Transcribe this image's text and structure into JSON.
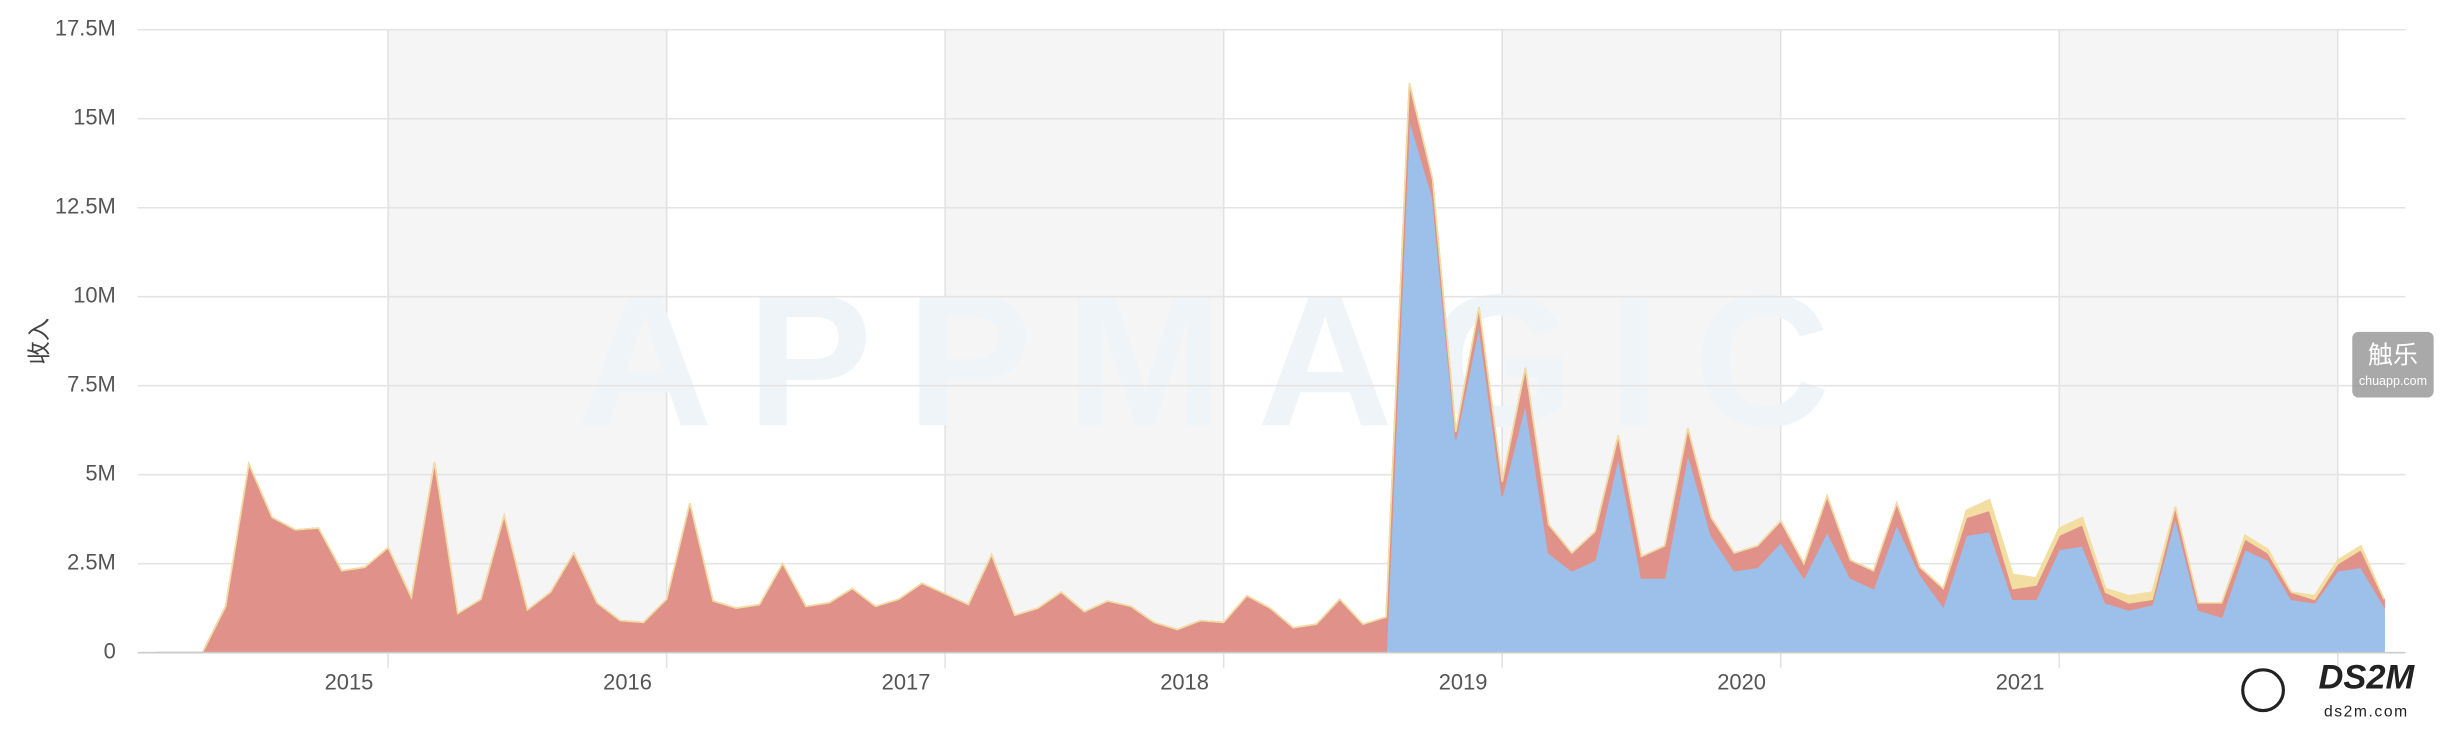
{
  "chart_data": {
    "type": "stacked_area",
    "ylabel": "收入",
    "watermark": "APPMAGIC",
    "watermark_badge": [
      "触乐",
      "chuapp.com"
    ],
    "watermark_logo": [
      "DS2M",
      "ds2m.com"
    ],
    "categories": [
      null,
      null,
      null,
      null,
      null,
      null,
      null,
      null,
      null,
      null,
      "2015",
      null,
      null,
      null,
      null,
      null,
      null,
      null,
      null,
      null,
      null,
      null,
      "2016",
      null,
      null,
      null,
      null,
      null,
      null,
      null,
      null,
      null,
      null,
      null,
      "2017",
      null,
      null,
      null,
      null,
      null,
      null,
      null,
      null,
      null,
      null,
      null,
      "2018",
      null,
      null,
      null,
      null,
      null,
      null,
      null,
      null,
      null,
      null,
      null,
      "2019",
      null,
      null,
      null,
      null,
      null,
      null,
      null,
      null,
      null,
      null,
      null,
      "2020",
      null,
      null,
      null,
      null,
      null,
      null,
      null,
      null,
      null,
      null,
      null,
      "2021",
      null,
      null,
      null,
      null,
      null,
      null,
      null,
      null,
      null,
      null,
      null,
      null,
      null,
      null
    ],
    "series": [
      {
        "color": "#9cc0ea",
        "values": [
          0,
          0,
          0,
          0,
          0,
          0,
          0,
          0,
          0,
          0,
          0,
          0,
          0,
          0,
          0,
          0,
          0,
          0,
          0,
          0,
          0,
          0,
          0,
          0,
          0,
          0,
          0,
          0,
          0,
          0,
          0,
          0,
          0,
          0,
          0,
          0,
          0,
          0,
          0,
          0,
          0,
          0,
          0,
          0,
          0,
          0,
          0,
          0,
          0,
          0,
          0,
          0,
          0,
          0,
          15000000,
          12800000,
          6000000,
          9200000,
          4400000,
          7000000,
          2800000,
          2300000,
          2600000,
          5500000,
          2100000,
          2100000,
          5600000,
          3300000,
          2300000,
          2400000,
          3100000,
          2100000,
          3400000,
          2100000,
          1800000,
          3600000,
          2200000,
          1300000,
          3300000,
          3400000,
          1500000,
          1500000,
          2900000,
          3000000,
          1400000,
          1200000,
          1350000,
          3800000,
          1200000,
          1000000,
          2900000,
          2600000,
          1500000,
          1400000,
          2300000,
          2400000,
          1300000
        ]
      },
      {
        "color": "#e0928a",
        "values": [
          0,
          0,
          0,
          1300000,
          5300000,
          3800000,
          3450000,
          3500000,
          2300000,
          2400000,
          2950000,
          1550000,
          5350000,
          1100000,
          1500000,
          3850000,
          1200000,
          1700000,
          2800000,
          1400000,
          900000,
          850000,
          1500000,
          4200000,
          1450000,
          1250000,
          1350000,
          2500000,
          1300000,
          1400000,
          1800000,
          1300000,
          1500000,
          1950000,
          1650000,
          1350000,
          2750000,
          1050000,
          1250000,
          1700000,
          1150000,
          1450000,
          1300000,
          850000,
          650000,
          900000,
          850000,
          1600000,
          1250000,
          700000,
          800000,
          1500000,
          800000,
          1000000,
          1000000,
          500000,
          200000,
          500000,
          400000,
          1000000,
          800000,
          500000,
          800000,
          600000,
          600000,
          900000,
          700000,
          500000,
          500000,
          600000,
          600000,
          400000,
          1000000,
          500000,
          500000,
          600000,
          200000,
          500000,
          500000,
          600000,
          300000,
          400000,
          400000,
          600000,
          300000,
          200000,
          150000,
          300000,
          200000,
          400000,
          300000,
          200000,
          200000,
          100000,
          200000,
          500000,
          200000
        ]
      },
      {
        "color": "#f2dea0",
        "values": [
          0,
          0,
          0,
          0,
          0,
          0,
          0,
          0,
          0,
          0,
          0,
          0,
          0,
          0,
          0,
          0,
          0,
          0,
          0,
          0,
          0,
          0,
          0,
          0,
          0,
          0,
          0,
          0,
          0,
          0,
          0,
          0,
          0,
          0,
          0,
          0,
          0,
          0,
          0,
          0,
          0,
          0,
          0,
          0,
          0,
          0,
          0,
          0,
          0,
          0,
          0,
          0,
          0,
          0,
          0,
          0,
          0,
          0,
          0,
          0,
          0,
          0,
          0,
          0,
          0,
          0,
          0,
          0,
          0,
          0,
          0,
          0,
          0,
          0,
          0,
          0,
          0,
          0,
          200000,
          300000,
          400000,
          200000,
          200000,
          200000,
          100000,
          200000,
          200000,
          0,
          0,
          0,
          100000,
          100000,
          0,
          100000,
          100000,
          100000,
          0
        ]
      }
    ],
    "ylim": [
      0,
      17500000
    ],
    "yticks": [
      0,
      {
        "value": 2500000,
        "label": "2.5M"
      },
      {
        "value": 5000000,
        "label": "5M"
      },
      {
        "value": 7500000,
        "label": "7.5M"
      },
      {
        "value": 10000000,
        "label": "10M"
      },
      {
        "value": 12500000,
        "label": "12.5M"
      },
      {
        "value": 15000000,
        "label": "15M"
      },
      {
        "value": 17500000,
        "label": "17.5M"
      }
    ],
    "grid": true
  }
}
